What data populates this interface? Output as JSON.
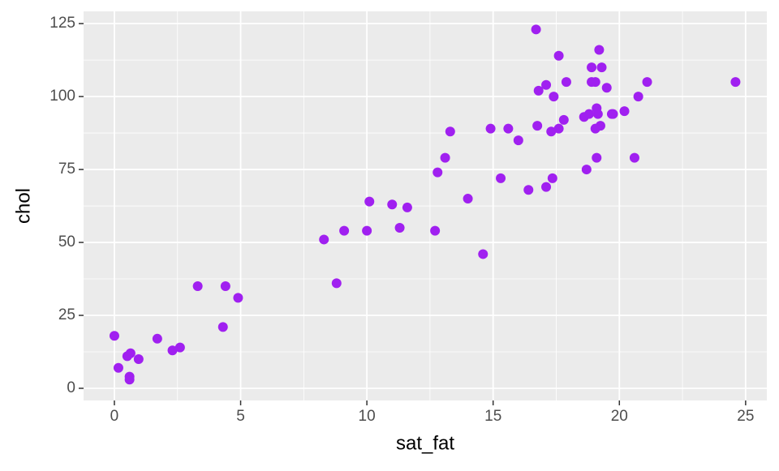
{
  "chart_data": {
    "type": "scatter",
    "x_label": "sat_fat",
    "y_label": "chol",
    "color": "#a020f0",
    "grid": true,
    "x": [
      0,
      0.16,
      0.51,
      0.64,
      0.6,
      0.6,
      0.96,
      1.7,
      2.3,
      2.6,
      3.3,
      4.3,
      4.4,
      4.9,
      8.3,
      8.8,
      9.1,
      10.1,
      10.0,
      11.0,
      11.3,
      11.6,
      12.7,
      12.8,
      13.1,
      13.3,
      14.0,
      14.6,
      14.9,
      15.3,
      15.6,
      16.0,
      16.4,
      16.7,
      16.8,
      16.75,
      17.1,
      17.1,
      17.3,
      17.4,
      17.35,
      17.6,
      17.6,
      17.8,
      17.9,
      18.6,
      18.7,
      18.8,
      18.9,
      18.9,
      19.05,
      19.1,
      19.1,
      19.05,
      19.15,
      19.25,
      19.2,
      19.3,
      19.5,
      19.7,
      19.75,
      20.2,
      20.6,
      20.75,
      21.1,
      24.6
    ],
    "values": [
      18,
      7,
      11,
      12,
      4,
      3,
      10,
      17,
      13,
      14,
      35,
      21,
      35,
      31,
      51,
      36,
      54,
      64,
      54,
      63,
      55,
      62,
      54,
      74,
      79,
      88,
      65,
      46,
      89,
      72,
      89,
      85,
      68,
      123,
      102,
      90,
      104,
      69,
      88,
      100,
      72,
      89,
      114,
      92,
      105,
      93,
      75,
      94,
      105,
      110,
      105,
      96,
      79,
      89,
      94,
      90,
      116,
      110,
      103,
      94,
      94,
      95,
      79,
      100,
      105,
      105
    ],
    "xlim": [
      -1.22,
      25.84
    ],
    "ylim": [
      -4.17,
      129.2
    ],
    "xticks": [
      0,
      5,
      10,
      15,
      20,
      25
    ],
    "yticks": [
      0,
      25,
      50,
      75,
      100,
      125
    ]
  }
}
